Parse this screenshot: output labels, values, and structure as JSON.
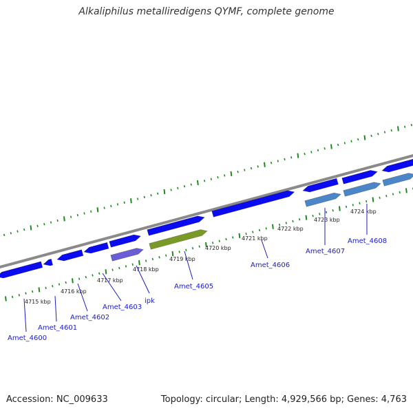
{
  "title": "Alkaliphilus metalliredigens QYMF, complete genome",
  "footer": {
    "accession": "Accession: NC_009633",
    "summary": "Topology: circular; Length: 4,929,566 bp; Genes: 4,763"
  },
  "colors": {
    "backbone": "#8a8a8a",
    "gene_forward": "#0b0bf0",
    "gene_reverse": "#4a86c8",
    "rrna": "#6a5ed6",
    "pseudo": "#7a9a28",
    "tick": "#1e8a1e",
    "label": "#1a1acc"
  },
  "scale": {
    "kbp_labels": [
      "4715 kbp",
      "4716 kbp",
      "4717 kbp",
      "4718 kbp",
      "4719 kbp",
      "4720 kbp",
      "4721 kbp",
      "4722 kbp",
      "4723 kbp",
      "4724 kbp"
    ]
  },
  "gene_labels": [
    "Amet_4600",
    "Amet_4601",
    "Amet_4602",
    "Amet_4603",
    "ipk",
    "Amet_4605",
    "Amet_4606",
    "Amet_4607",
    "Amet_4608"
  ]
}
